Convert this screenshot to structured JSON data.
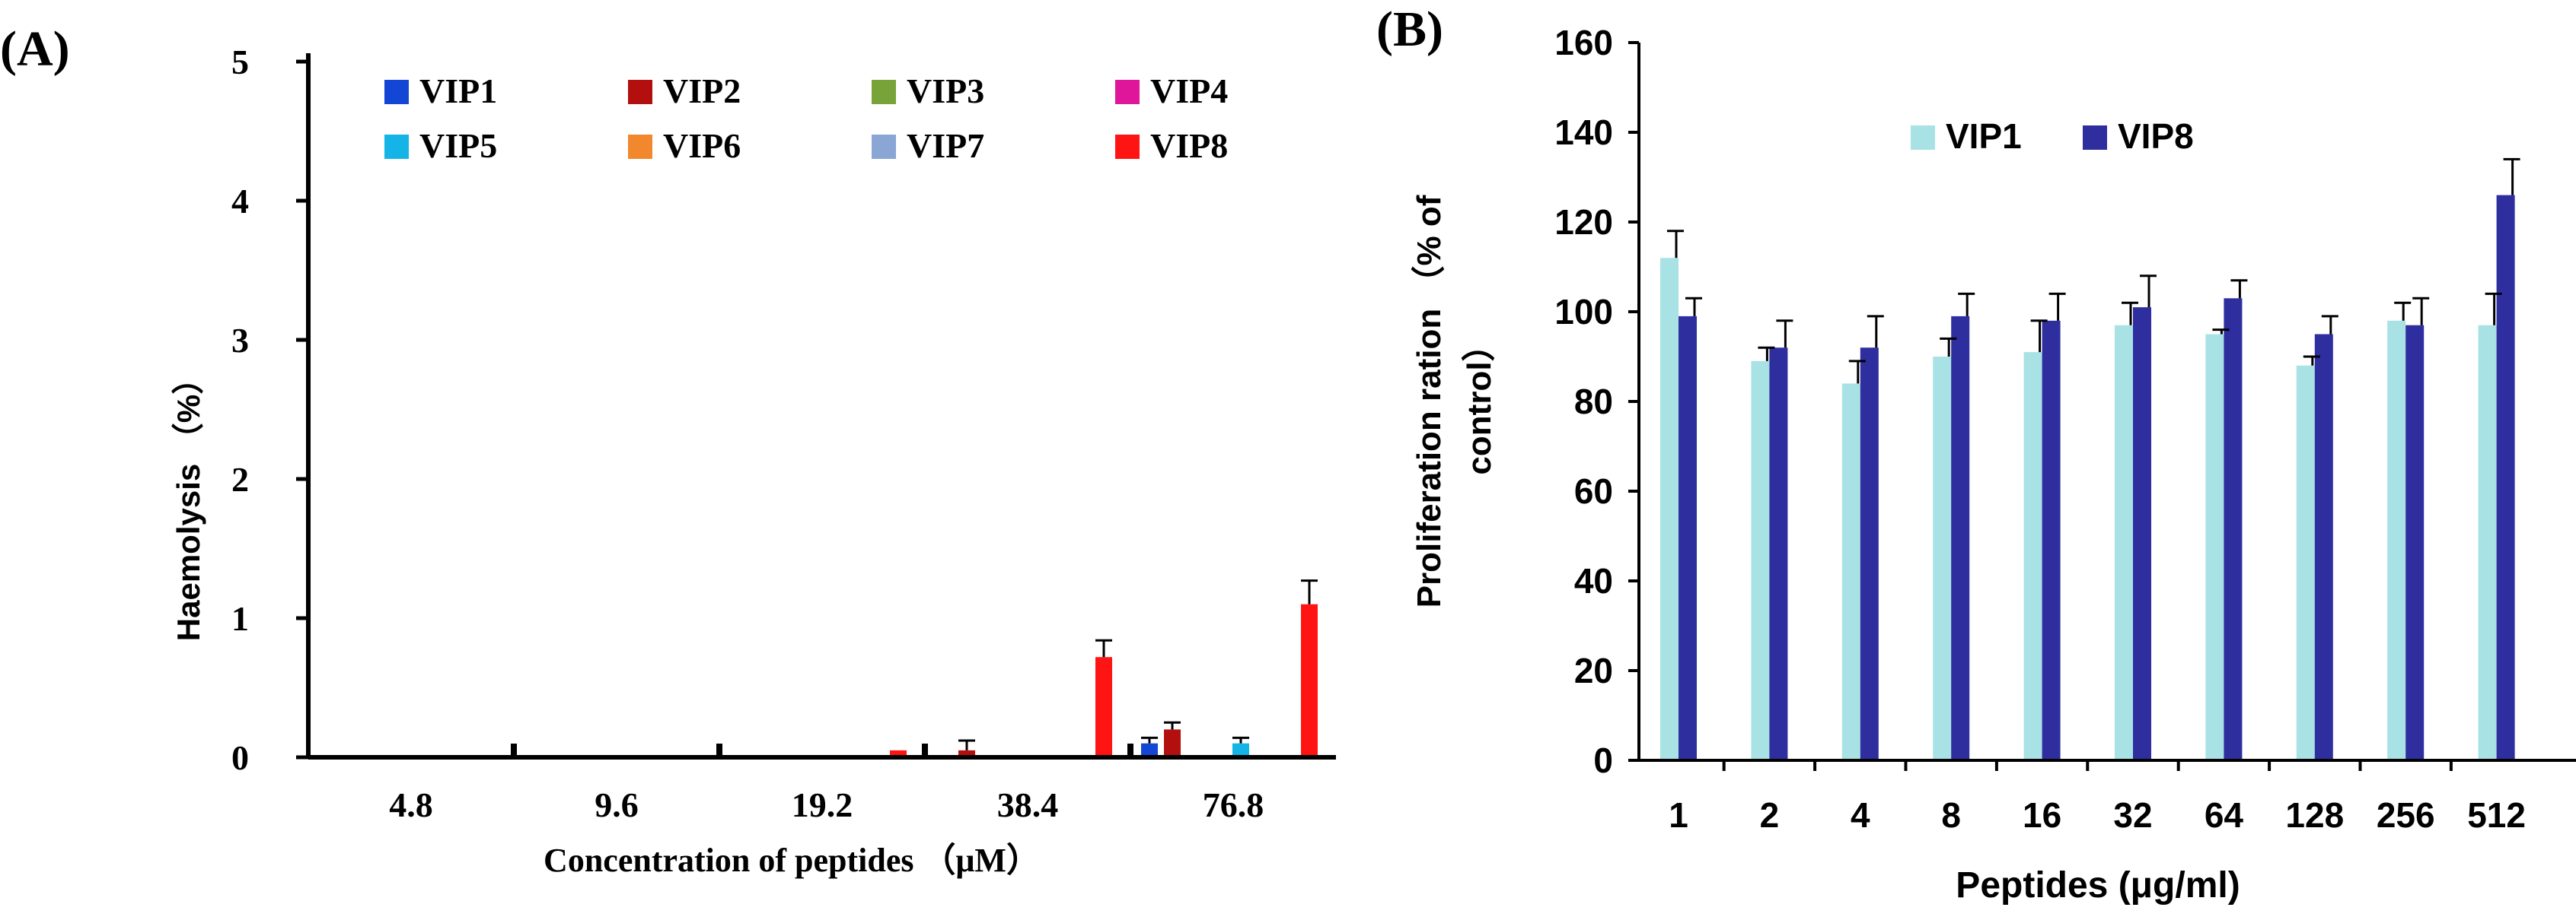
{
  "panel_a": {
    "label": "(A)",
    "chart_data": {
      "type": "bar",
      "title": "",
      "xlabel": "Concentration of peptides （μM）",
      "ylabel": "Haemolysis （%）",
      "ylim": [
        0,
        5
      ],
      "yticks": [
        "0",
        "1",
        "2",
        "3",
        "4",
        "5"
      ],
      "categories": [
        "4.8",
        "9.6",
        "19.2",
        "38.4",
        "76.8"
      ],
      "legend": "top",
      "series": [
        {
          "name": "VIP1",
          "color": "#1446d6",
          "values": [
            0.01,
            0.01,
            0.01,
            0.01,
            0.1
          ],
          "errors": [
            0,
            0,
            0,
            0,
            0.04
          ]
        },
        {
          "name": "VIP2",
          "color": "#b30f0f",
          "values": [
            0.01,
            0.01,
            0.01,
            0.05,
            0.2
          ],
          "errors": [
            0,
            0,
            0,
            0.07,
            0.05
          ]
        },
        {
          "name": "VIP3",
          "color": "#77a33a",
          "values": [
            0.005,
            0.005,
            0.005,
            0.005,
            0.005
          ],
          "errors": [
            0,
            0,
            0,
            0,
            0
          ]
        },
        {
          "name": "VIP4",
          "color": "#e0169a",
          "values": [
            0.005,
            0.005,
            0.005,
            0.005,
            0.005
          ],
          "errors": [
            0,
            0,
            0,
            0,
            0
          ]
        },
        {
          "name": "VIP5",
          "color": "#14b4e6",
          "values": [
            0.01,
            0.01,
            0.01,
            0.01,
            0.1
          ],
          "errors": [
            0,
            0,
            0,
            0,
            0.04
          ]
        },
        {
          "name": "VIP6",
          "color": "#f2882e",
          "values": [
            0.005,
            0.005,
            0.005,
            0.005,
            0.005
          ],
          "errors": [
            0,
            0,
            0,
            0,
            0
          ]
        },
        {
          "name": "VIP7",
          "color": "#8aa6d4",
          "values": [
            0.005,
            0.005,
            0.005,
            0.005,
            0.005
          ],
          "errors": [
            0,
            0,
            0,
            0,
            0
          ]
        },
        {
          "name": "VIP8",
          "color": "#ff1414",
          "values": [
            0.01,
            0.01,
            0.05,
            0.72,
            1.1
          ],
          "errors": [
            0,
            0,
            0,
            0.12,
            0.17
          ]
        }
      ]
    }
  },
  "panel_b": {
    "label": "(B)",
    "chart_data": {
      "type": "bar",
      "title": "",
      "xlabel": "Peptides (μg/ml)",
      "ylabel_line1": "Proliferation ration （% of",
      "ylabel_line2": "control）",
      "ylim": [
        0,
        160
      ],
      "yticks": [
        "0",
        "20",
        "40",
        "60",
        "80",
        "100",
        "120",
        "140",
        "160"
      ],
      "categories": [
        "1",
        "2",
        "4",
        "8",
        "16",
        "32",
        "64",
        "128",
        "256",
        "512"
      ],
      "legend": "top-left",
      "series": [
        {
          "name": "VIP1",
          "color": "#a8e2e4",
          "values": [
            112,
            89,
            84,
            90,
            91,
            97,
            95,
            88,
            98,
            97
          ],
          "errors": [
            6,
            3,
            5,
            4,
            7,
            5,
            1,
            2,
            4,
            7
          ]
        },
        {
          "name": "VIP8",
          "color": "#2e2e9e",
          "values": [
            99,
            92,
            92,
            99,
            98,
            101,
            103,
            95,
            97,
            126
          ],
          "errors": [
            4,
            6,
            7,
            5,
            6,
            7,
            4,
            4,
            6,
            8
          ]
        }
      ]
    }
  }
}
